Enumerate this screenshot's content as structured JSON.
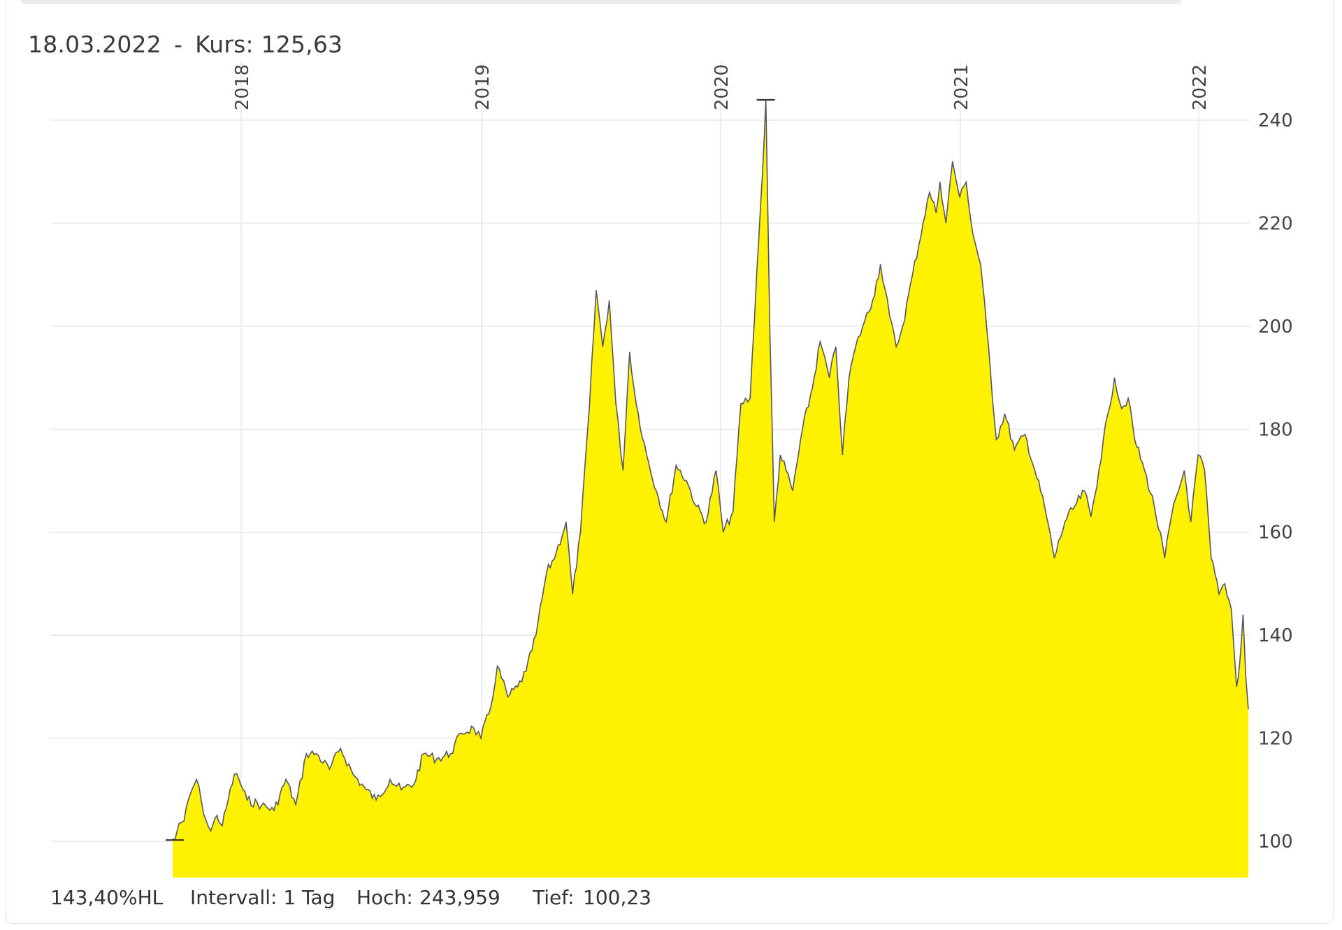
{
  "header": {
    "date": "18.03.2022",
    "separator": "-",
    "price_label": "Kurs:",
    "price_value": "125,63"
  },
  "footer": {
    "change": "143,40%HL",
    "interval": "Intervall: 1 Tag",
    "high_label": "Hoch:",
    "high_value": "243,959",
    "low_label": "Tief:",
    "low_value": "100,23"
  },
  "colors": {
    "area_fill": "#fff200",
    "line": "#555566",
    "grid": "#e8e8e8"
  },
  "chart_data": {
    "type": "area",
    "title": "",
    "xlabel": "",
    "ylabel": "",
    "ylim": [
      93,
      250
    ],
    "xlim": [
      "2017-05-01",
      "2022-03-18"
    ],
    "y_ticks": [
      100,
      120,
      140,
      160,
      180,
      200,
      220,
      240
    ],
    "x_ticks": [
      {
        "label": "2018",
        "date": "2018-01-01"
      },
      {
        "label": "2019",
        "date": "2019-01-01"
      },
      {
        "label": "2020",
        "date": "2020-01-01"
      },
      {
        "label": "2021",
        "date": "2021-01-01"
      },
      {
        "label": "2022",
        "date": "2022-01-01"
      }
    ],
    "grid": true,
    "high_marker": {
      "date": "2020-03-10",
      "value": 243.959
    },
    "low_marker": {
      "date": "2017-06-01",
      "value": 100.23
    },
    "series": [
      {
        "values": [
          [
            "2017-05-25",
            100.5
          ],
          [
            "2017-06-01",
            100.23
          ],
          [
            "2017-06-15",
            103.5
          ],
          [
            "2017-07-01",
            104
          ],
          [
            "2017-07-20",
            109
          ],
          [
            "2017-08-10",
            112
          ],
          [
            "2017-08-25",
            108
          ],
          [
            "2017-09-10",
            104
          ],
          [
            "2017-09-25",
            102
          ],
          [
            "2017-10-15",
            105
          ],
          [
            "2017-11-01",
            103
          ],
          [
            "2017-11-20",
            108
          ],
          [
            "2017-12-10",
            113
          ],
          [
            "2017-12-25",
            112
          ],
          [
            "2018-01-10",
            108
          ],
          [
            "2018-02-01",
            107
          ],
          [
            "2018-02-20",
            106
          ],
          [
            "2018-03-10",
            112
          ],
          [
            "2018-03-25",
            107
          ],
          [
            "2018-04-10",
            117
          ],
          [
            "2018-04-25",
            117
          ],
          [
            "2018-05-15",
            114
          ],
          [
            "2018-06-01",
            118
          ],
          [
            "2018-06-20",
            113
          ],
          [
            "2018-07-10",
            110
          ],
          [
            "2018-07-25",
            108
          ],
          [
            "2018-08-15",
            112
          ],
          [
            "2018-09-01",
            110
          ],
          [
            "2018-09-20",
            111
          ],
          [
            "2018-10-05",
            117
          ],
          [
            "2018-10-25",
            116
          ],
          [
            "2018-11-15",
            117
          ],
          [
            "2018-12-01",
            121
          ],
          [
            "2018-12-20",
            122
          ],
          [
            "2018-12-31",
            120
          ],
          [
            "2019-01-15",
            126
          ],
          [
            "2019-01-25",
            134
          ],
          [
            "2019-02-10",
            128
          ],
          [
            "2019-02-25",
            130
          ],
          [
            "2019-03-10",
            133
          ],
          [
            "2019-03-25",
            140
          ],
          [
            "2019-04-10",
            152
          ],
          [
            "2019-04-25",
            156
          ],
          [
            "2019-05-10",
            162
          ],
          [
            "2019-05-20",
            148
          ],
          [
            "2019-06-01",
            160
          ],
          [
            "2019-06-15",
            185
          ],
          [
            "2019-06-25",
            207
          ],
          [
            "2019-07-05",
            196
          ],
          [
            "2019-07-15",
            205
          ],
          [
            "2019-07-25",
            185
          ],
          [
            "2019-08-05",
            172
          ],
          [
            "2019-08-15",
            195
          ],
          [
            "2019-08-25",
            185
          ],
          [
            "2019-09-10",
            175
          ],
          [
            "2019-09-25",
            168
          ],
          [
            "2019-10-10",
            162
          ],
          [
            "2019-10-25",
            173
          ],
          [
            "2019-11-10",
            170
          ],
          [
            "2019-11-25",
            165
          ],
          [
            "2019-12-10",
            162
          ],
          [
            "2019-12-25",
            172
          ],
          [
            "2020-01-05",
            160
          ],
          [
            "2020-01-20",
            164
          ],
          [
            "2020-02-01",
            185
          ],
          [
            "2020-02-15",
            186
          ],
          [
            "2020-02-25",
            210
          ],
          [
            "2020-03-05",
            230
          ],
          [
            "2020-03-10",
            243.959
          ],
          [
            "2020-03-16",
            200
          ],
          [
            "2020-03-23",
            162
          ],
          [
            "2020-04-01",
            175
          ],
          [
            "2020-04-10",
            172
          ],
          [
            "2020-04-20",
            168
          ],
          [
            "2020-05-05",
            180
          ],
          [
            "2020-05-20",
            188
          ],
          [
            "2020-06-01",
            197
          ],
          [
            "2020-06-15",
            190
          ],
          [
            "2020-06-25",
            196
          ],
          [
            "2020-07-05",
            175
          ],
          [
            "2020-07-15",
            190
          ],
          [
            "2020-07-25",
            196
          ],
          [
            "2020-08-05",
            200
          ],
          [
            "2020-08-20",
            205
          ],
          [
            "2020-09-01",
            212
          ],
          [
            "2020-09-15",
            202
          ],
          [
            "2020-09-25",
            196
          ],
          [
            "2020-10-05",
            200
          ],
          [
            "2020-10-20",
            210
          ],
          [
            "2020-11-05",
            220
          ],
          [
            "2020-11-15",
            226
          ],
          [
            "2020-11-25",
            222
          ],
          [
            "2020-12-01",
            228
          ],
          [
            "2020-12-10",
            220
          ],
          [
            "2020-12-20",
            232
          ],
          [
            "2020-12-31",
            225
          ],
          [
            "2021-01-10",
            228
          ],
          [
            "2021-01-20",
            218
          ],
          [
            "2021-02-01",
            212
          ],
          [
            "2021-02-10",
            200
          ],
          [
            "2021-02-25",
            178
          ],
          [
            "2021-03-10",
            183
          ],
          [
            "2021-03-25",
            176
          ],
          [
            "2021-04-10",
            179
          ],
          [
            "2021-04-25",
            172
          ],
          [
            "2021-05-10",
            165
          ],
          [
            "2021-05-25",
            155
          ],
          [
            "2021-06-10",
            162
          ],
          [
            "2021-06-25",
            165
          ],
          [
            "2021-07-10",
            168
          ],
          [
            "2021-07-20",
            163
          ],
          [
            "2021-08-01",
            172
          ],
          [
            "2021-08-15",
            183
          ],
          [
            "2021-08-25",
            190
          ],
          [
            "2021-09-05",
            184
          ],
          [
            "2021-09-15",
            186
          ],
          [
            "2021-09-25",
            178
          ],
          [
            "2021-10-10",
            172
          ],
          [
            "2021-10-25",
            165
          ],
          [
            "2021-11-10",
            155
          ],
          [
            "2021-11-20",
            163
          ],
          [
            "2021-12-01",
            168
          ],
          [
            "2021-12-10",
            172
          ],
          [
            "2021-12-20",
            162
          ],
          [
            "2021-12-31",
            175
          ],
          [
            "2022-01-10",
            172
          ],
          [
            "2022-01-20",
            155
          ],
          [
            "2022-02-01",
            148
          ],
          [
            "2022-02-10",
            150
          ],
          [
            "2022-02-20",
            145
          ],
          [
            "2022-02-28",
            130
          ],
          [
            "2022-03-05",
            135
          ],
          [
            "2022-03-10",
            144
          ],
          [
            "2022-03-14",
            132
          ],
          [
            "2022-03-18",
            125.63
          ]
        ]
      }
    ]
  }
}
